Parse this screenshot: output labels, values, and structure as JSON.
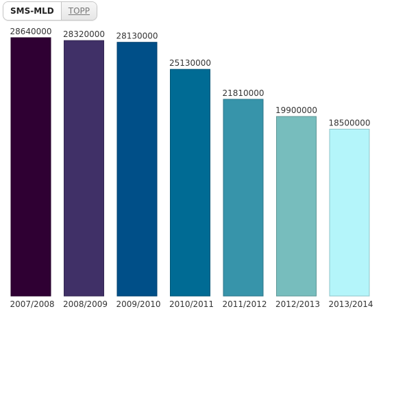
{
  "tabs": [
    {
      "label": "SMS-MLD",
      "active": true
    },
    {
      "label": "TOPP",
      "active": false
    }
  ],
  "chart_data": {
    "type": "bar",
    "categories": [
      "2007/2008",
      "2008/2009",
      "2009/2010",
      "2010/2011",
      "2011/2012",
      "2012/2013",
      "2013/2014"
    ],
    "values": [
      28640000,
      28320000,
      28130000,
      25130000,
      21810000,
      19900000,
      18500000
    ],
    "value_labels": [
      "28640000",
      "28320000",
      "28130000",
      "25130000",
      "21810000",
      "19900000",
      "18500000"
    ],
    "colors": [
      "#2f0033",
      "#403067",
      "#004f88",
      "#006b94",
      "#3794aa",
      "#77bdbd",
      "#b4f5fa"
    ],
    "title": "",
    "xlabel": "",
    "ylabel": "",
    "ylim": [
      0,
      28640000
    ],
    "grid": false,
    "legend": "none"
  }
}
